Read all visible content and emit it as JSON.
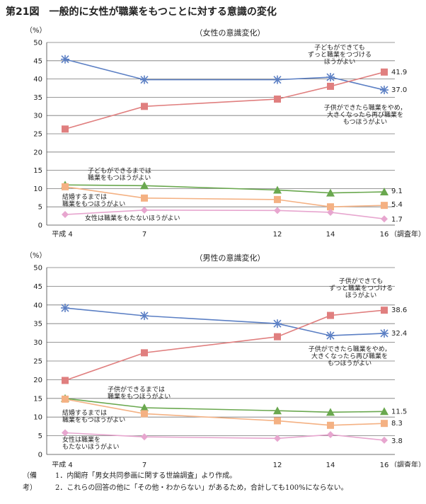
{
  "figure_title": "第21図　一般的に女性が職業をもつことに対する意識の変化",
  "notes": {
    "label": "（備考）",
    "items": [
      "1．内閣府「男女共同参画に関する世論調査」より作成。",
      "2．これらの回答の他に「その他・わからない」があるため，合計しても100%にならない。"
    ]
  },
  "colors": {
    "continue": "#5b7fc4",
    "reenter": "#e07f7f",
    "until_child": "#6aa84f",
    "until_marriage": "#f4b183",
    "never": "#e7a6cf"
  },
  "chart_data": [
    {
      "type": "line",
      "title": "（女性の意識変化）",
      "ylabel": "（%）",
      "ylim": [
        0,
        50
      ],
      "yticks": [
        0,
        5,
        10,
        15,
        20,
        25,
        30,
        35,
        40,
        45,
        50
      ],
      "x": [
        4,
        7,
        12,
        14,
        16
      ],
      "xticklabels": [
        "平成 4",
        "7",
        "12",
        "14",
        "16"
      ],
      "xunit": "（調査年）",
      "series": [
        {
          "key": "continue",
          "name": "子どもができても\nずっと職業をつづける\nほうがよい",
          "marker": "asterisk",
          "values": [
            45.4,
            39.8,
            39.8,
            40.5,
            37.0
          ],
          "end_label": "37.0"
        },
        {
          "key": "reenter",
          "name": "子供ができたら職業をやめ，\n大きくなったら再び職業を\nもつほうがよい",
          "marker": "square",
          "values": [
            26.3,
            32.5,
            34.5,
            38.0,
            41.9
          ],
          "end_label": "41.9"
        },
        {
          "key": "until_child",
          "name": "子どもができるまでは\n職業をもつほうがよい",
          "marker": "triangle",
          "values": [
            11.0,
            10.8,
            9.6,
            8.8,
            9.1
          ],
          "end_label": "9.1"
        },
        {
          "key": "until_marriage",
          "name": "結婚するまでは\n職業をもつほうがよい",
          "marker": "square",
          "values": [
            10.5,
            7.4,
            7.0,
            5.0,
            5.4
          ],
          "end_label": "5.4"
        },
        {
          "key": "never",
          "name": "女性は職業をもたないほうがよい",
          "marker": "diamond",
          "values": [
            2.9,
            4.1,
            4.0,
            3.5,
            1.7
          ],
          "end_label": "1.7"
        }
      ]
    },
    {
      "type": "line",
      "title": "（男性の意識変化）",
      "ylabel": "（%）",
      "ylim": [
        0,
        50
      ],
      "yticks": [
        0,
        5,
        10,
        15,
        20,
        25,
        30,
        35,
        40,
        45,
        50
      ],
      "x": [
        4,
        7,
        12,
        14,
        16
      ],
      "xticklabels": [
        "平成 4",
        "7",
        "12",
        "14",
        "16"
      ],
      "xunit": "（調査年）",
      "series": [
        {
          "key": "continue",
          "name": "子供ができても\nずっと職業をつづける\nほうがよい",
          "marker": "asterisk",
          "values": [
            39.2,
            37.1,
            35.0,
            31.8,
            32.4
          ],
          "end_label": "32.4"
        },
        {
          "key": "reenter",
          "name": "子供ができたら職業をやめ，\n大きくなったら再び職業を\nもつほうがよい",
          "marker": "square",
          "values": [
            19.8,
            27.2,
            31.5,
            37.2,
            38.6
          ],
          "end_label": "38.6"
        },
        {
          "key": "until_child",
          "name": "子供ができるまでは\n職業をもつほうがよい",
          "marker": "triangle",
          "values": [
            15.0,
            12.5,
            11.7,
            11.3,
            11.5
          ],
          "end_label": "11.5"
        },
        {
          "key": "until_marriage",
          "name": "結婚するまでは\n職業をもつほうがよい",
          "marker": "square",
          "values": [
            14.8,
            10.9,
            9.0,
            7.8,
            8.3
          ],
          "end_label": "8.3"
        },
        {
          "key": "never",
          "name": "女性は職業を\nもたないほうがよい",
          "marker": "diamond",
          "values": [
            5.8,
            4.7,
            4.3,
            5.3,
            3.8
          ],
          "end_label": "3.8"
        }
      ]
    }
  ]
}
